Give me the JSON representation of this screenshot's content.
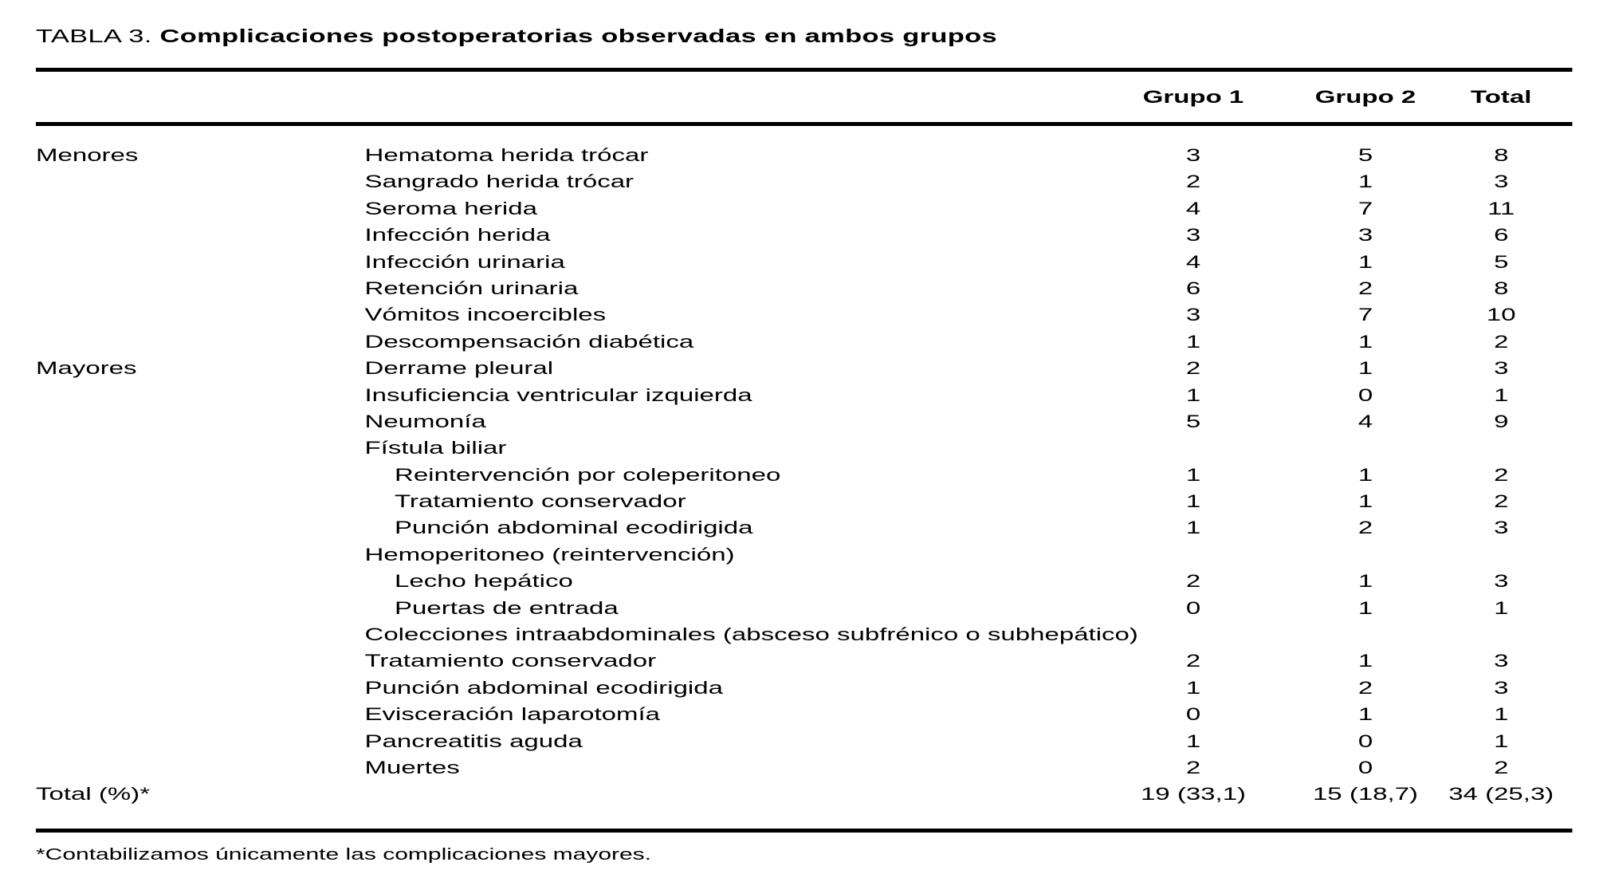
{
  "page": {
    "title_prefix": "TABLA 3.",
    "title_caption": "Complicaciones postoperatorias observadas en ambos grupos",
    "footnote": "*Contabilizamos únicamente las complicaciones mayores."
  },
  "table": {
    "columns": [
      "Grupo 1",
      "Grupo 2",
      "Total"
    ],
    "rows": [
      {
        "group": "Menores",
        "label": "Hematoma herida trócar",
        "indent": 0,
        "values": [
          "3",
          "5",
          "8"
        ]
      },
      {
        "group": "",
        "label": "Sangrado herida trócar",
        "indent": 0,
        "values": [
          "2",
          "1",
          "3"
        ]
      },
      {
        "group": "",
        "label": "Seroma herida",
        "indent": 0,
        "values": [
          "4",
          "7",
          "11"
        ]
      },
      {
        "group": "",
        "label": "Infección herida",
        "indent": 0,
        "values": [
          "3",
          "3",
          "6"
        ]
      },
      {
        "group": "",
        "label": "Infección urinaria",
        "indent": 0,
        "values": [
          "4",
          "1",
          "5"
        ]
      },
      {
        "group": "",
        "label": "Retención urinaria",
        "indent": 0,
        "values": [
          "6",
          "2",
          "8"
        ]
      },
      {
        "group": "",
        "label": "Vómitos incoercibles",
        "indent": 0,
        "values": [
          "3",
          "7",
          "10"
        ]
      },
      {
        "group": "",
        "label": "Descompensación diabética",
        "indent": 0,
        "values": [
          "1",
          "1",
          "2"
        ]
      },
      {
        "group": "Mayores",
        "label": "Derrame pleural",
        "indent": 0,
        "values": [
          "2",
          "1",
          "3"
        ]
      },
      {
        "group": "",
        "label": "Insuficiencia ventricular izquierda",
        "indent": 0,
        "values": [
          "1",
          "0",
          "1"
        ]
      },
      {
        "group": "",
        "label": "Neumonía",
        "indent": 0,
        "values": [
          "5",
          "4",
          "9"
        ]
      },
      {
        "group": "",
        "label": "Fístula biliar",
        "indent": 0,
        "values": [
          "",
          "",
          ""
        ]
      },
      {
        "group": "",
        "label": "Reintervención por coleperitoneo",
        "indent": 1,
        "values": [
          "1",
          "1",
          "2"
        ]
      },
      {
        "group": "",
        "label": "Tratamiento conservador",
        "indent": 1,
        "values": [
          "1",
          "1",
          "2"
        ]
      },
      {
        "group": "",
        "label": "Punción abdominal ecodirigida",
        "indent": 1,
        "values": [
          "1",
          "2",
          "3"
        ]
      },
      {
        "group": "",
        "label": "Hemoperitoneo (reintervención)",
        "indent": 0,
        "values": [
          "",
          "",
          ""
        ]
      },
      {
        "group": "",
        "label": "Lecho hepático",
        "indent": 1,
        "values": [
          "2",
          "1",
          "3"
        ]
      },
      {
        "group": "",
        "label": "Puertas de entrada",
        "indent": 1,
        "values": [
          "0",
          "1",
          "1"
        ]
      },
      {
        "group": "",
        "label": "Colecciones intraabdominales (absceso subfrénico o subhepático)",
        "indent": 0,
        "values": [
          "",
          "",
          ""
        ]
      },
      {
        "group": "",
        "label": "Tratamiento conservador",
        "indent": 0,
        "values": [
          "2",
          "1",
          "3"
        ]
      },
      {
        "group": "",
        "label": "Punción abdominal ecodirigida",
        "indent": 0,
        "values": [
          "1",
          "2",
          "3"
        ]
      },
      {
        "group": "",
        "label": "Evisceración laparotomía",
        "indent": 0,
        "values": [
          "0",
          "1",
          "1"
        ]
      },
      {
        "group": "",
        "label": "Pancreatitis aguda",
        "indent": 0,
        "values": [
          "1",
          "0",
          "1"
        ]
      },
      {
        "group": "",
        "label": "Muertes",
        "indent": 0,
        "values": [
          "2",
          "0",
          "2"
        ]
      },
      {
        "group": "Total (%)*",
        "label": "",
        "indent": 0,
        "values": [
          "19 (33,1)",
          "15 (18,7)",
          "34 (25,3)"
        ]
      }
    ]
  }
}
